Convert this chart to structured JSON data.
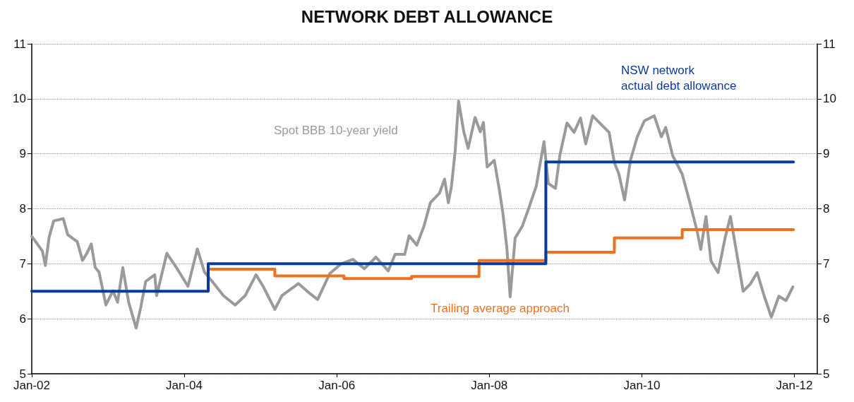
{
  "chart_data": {
    "type": "line",
    "title": "NETWORK DEBT ALLOWANCE",
    "xlim": [
      "2002-01-01",
      "2012-04-20"
    ],
    "xticks": [
      {
        "value": "2002-01-01",
        "label": "Jan-02"
      },
      {
        "value": "2004-01-01",
        "label": "Jan-04"
      },
      {
        "value": "2006-01-01",
        "label": "Jan-06"
      },
      {
        "value": "2008-01-01",
        "label": "Jan-08"
      },
      {
        "value": "2010-01-01",
        "label": "Jan-10"
      },
      {
        "value": "2012-01-01",
        "label": "Jan-12"
      }
    ],
    "ylim": [
      5,
      11
    ],
    "yticks": [
      5,
      6,
      7,
      8,
      9,
      10,
      11
    ],
    "y2lim": [
      5,
      11
    ],
    "y2ticks": [
      5,
      6,
      7,
      8,
      9,
      10,
      11
    ],
    "grid": "y",
    "legend": false,
    "marker": "none",
    "line_style": "solid",
    "series": [
      {
        "name": "Spot BBB 10-year yield",
        "color": "#9a9a9a",
        "x": [
          "2002-01-01",
          "2002-02-21",
          "2002-03-07",
          "2002-03-25",
          "2002-04-16",
          "2002-06-01",
          "2002-06-22",
          "2002-08-07",
          "2002-09-01",
          "2002-09-22",
          "2002-10-13",
          "2002-11-01",
          "2002-11-19",
          "2002-12-22",
          "2003-01-25",
          "2003-02-16",
          "2003-03-13",
          "2003-04-10",
          "2003-05-16",
          "2003-06-07",
          "2003-07-01",
          "2003-08-13",
          "2003-08-22",
          "2003-10-10",
          "2003-11-25",
          "2004-01-19",
          "2004-03-04",
          "2004-04-07",
          "2004-05-22",
          "2004-07-07",
          "2004-09-01",
          "2004-10-19",
          "2004-12-10",
          "2005-01-13",
          "2005-03-10",
          "2005-04-13",
          "2005-07-01",
          "2005-08-28",
          "2005-10-01",
          "2005-11-28",
          "2006-01-22",
          "2006-03-19",
          "2006-05-13",
          "2006-07-07",
          "2006-09-04",
          "2006-10-07",
          "2006-11-22",
          "2006-12-13",
          "2007-01-19",
          "2007-02-22",
          "2007-03-25",
          "2007-05-07",
          "2007-06-01",
          "2007-06-19",
          "2007-07-04",
          "2007-07-22",
          "2007-08-07",
          "2007-09-01",
          "2007-09-22",
          "2007-10-25",
          "2007-11-19",
          "2007-12-04",
          "2007-12-22",
          "2008-01-25",
          "2008-02-19",
          "2008-03-07",
          "2008-03-25",
          "2008-04-10",
          "2008-05-04",
          "2008-06-07",
          "2008-07-10",
          "2008-08-13",
          "2008-09-19",
          "2008-10-10",
          "2008-11-13",
          "2008-12-04",
          "2009-01-07",
          "2009-02-10",
          "2009-03-13",
          "2009-04-07",
          "2009-05-10",
          "2009-06-13",
          "2009-07-28",
          "2009-08-22",
          "2009-09-13",
          "2009-10-10",
          "2009-11-07",
          "2009-12-10",
          "2010-01-13",
          "2010-03-01",
          "2010-04-04",
          "2010-04-25",
          "2010-05-28",
          "2010-07-13",
          "2010-08-19",
          "2010-09-22",
          "2010-10-10",
          "2010-11-04",
          "2010-11-28",
          "2011-01-01",
          "2011-02-04",
          "2011-03-01",
          "2011-03-28",
          "2011-05-01",
          "2011-06-04",
          "2011-07-07",
          "2011-08-10",
          "2011-09-13",
          "2011-10-19",
          "2011-11-22",
          "2011-12-25"
        ],
        "values": [
          7.5,
          7.23,
          6.97,
          7.48,
          7.78,
          7.82,
          7.53,
          7.4,
          7.06,
          7.19,
          7.36,
          6.93,
          6.85,
          6.25,
          6.51,
          6.3,
          6.93,
          6.3,
          5.83,
          6.21,
          6.68,
          6.8,
          6.42,
          7.19,
          6.93,
          6.59,
          7.27,
          6.85,
          6.64,
          6.42,
          6.25,
          6.42,
          6.8,
          6.59,
          6.17,
          6.42,
          6.64,
          6.45,
          6.35,
          6.82,
          7.0,
          7.08,
          6.91,
          7.12,
          6.87,
          7.17,
          7.17,
          7.51,
          7.34,
          7.68,
          8.11,
          8.28,
          8.54,
          8.11,
          8.41,
          9.06,
          9.96,
          9.4,
          9.1,
          9.66,
          9.4,
          9.57,
          8.76,
          8.88,
          8.33,
          7.9,
          7.3,
          6.4,
          7.47,
          7.68,
          8.03,
          8.41,
          9.22,
          8.46,
          8.37,
          8.97,
          9.56,
          9.39,
          9.65,
          9.18,
          9.69,
          9.56,
          9.39,
          8.84,
          8.63,
          8.16,
          8.88,
          9.31,
          9.6,
          9.69,
          9.31,
          9.48,
          8.97,
          8.63,
          8.11,
          7.6,
          7.26,
          7.86,
          7.05,
          6.84,
          7.48,
          7.86,
          7.26,
          6.5,
          6.63,
          6.84,
          6.41,
          6.03,
          6.41,
          6.33,
          6.58
        ]
      },
      {
        "name": "Trailing average approach",
        "type": "step",
        "color": "#f07020",
        "x": [
          "2004-04-25",
          "2005-03-10",
          "2006-02-04",
          "2006-12-25",
          "2007-11-13",
          "2008-09-28",
          "2009-08-22",
          "2010-07-13",
          "2011-12-28"
        ],
        "values": [
          6.9,
          6.78,
          6.73,
          6.77,
          7.06,
          7.21,
          7.47,
          7.62,
          7.62
        ]
      },
      {
        "name": "NSW network\nactual debt allowance",
        "type": "step",
        "color": "#0a3a9c",
        "x": [
          "2002-01-01",
          "2004-04-25",
          "2008-09-28",
          "2011-12-28"
        ],
        "values": [
          6.5,
          7.0,
          8.85,
          8.85
        ]
      }
    ]
  }
}
